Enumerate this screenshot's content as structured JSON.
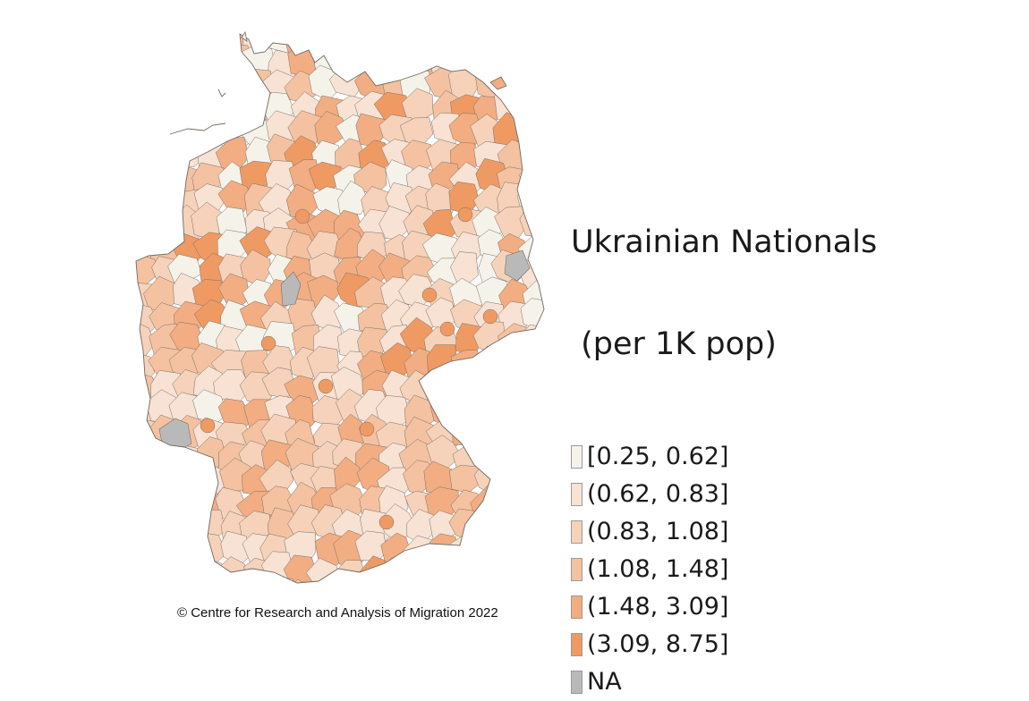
{
  "legend": {
    "title_line1": "Ukrainian Nationals",
    "title_line2": " (per 1K pop)",
    "items": [
      {
        "label": "[0.25, 0.62]",
        "color": "#f5f3e9"
      },
      {
        "label": "(0.62, 0.83]",
        "color": "#f7e2d3"
      },
      {
        "label": "(0.83, 1.08]",
        "color": "#f5d2b9"
      },
      {
        "label": "(1.08, 1.48]",
        "color": "#f4c2a0"
      },
      {
        "label": "(1.48, 3.09]",
        "color": "#f2ad82"
      },
      {
        "label": "(3.09, 8.75]",
        "color": "#ef9a63"
      },
      {
        "label": "NA",
        "color": "#b9b9b9"
      }
    ]
  },
  "caption": "© Centre for Research and Analysis of Migration 2022",
  "map": {
    "region": "germany-districts",
    "border_color": "#7a6f66"
  }
}
